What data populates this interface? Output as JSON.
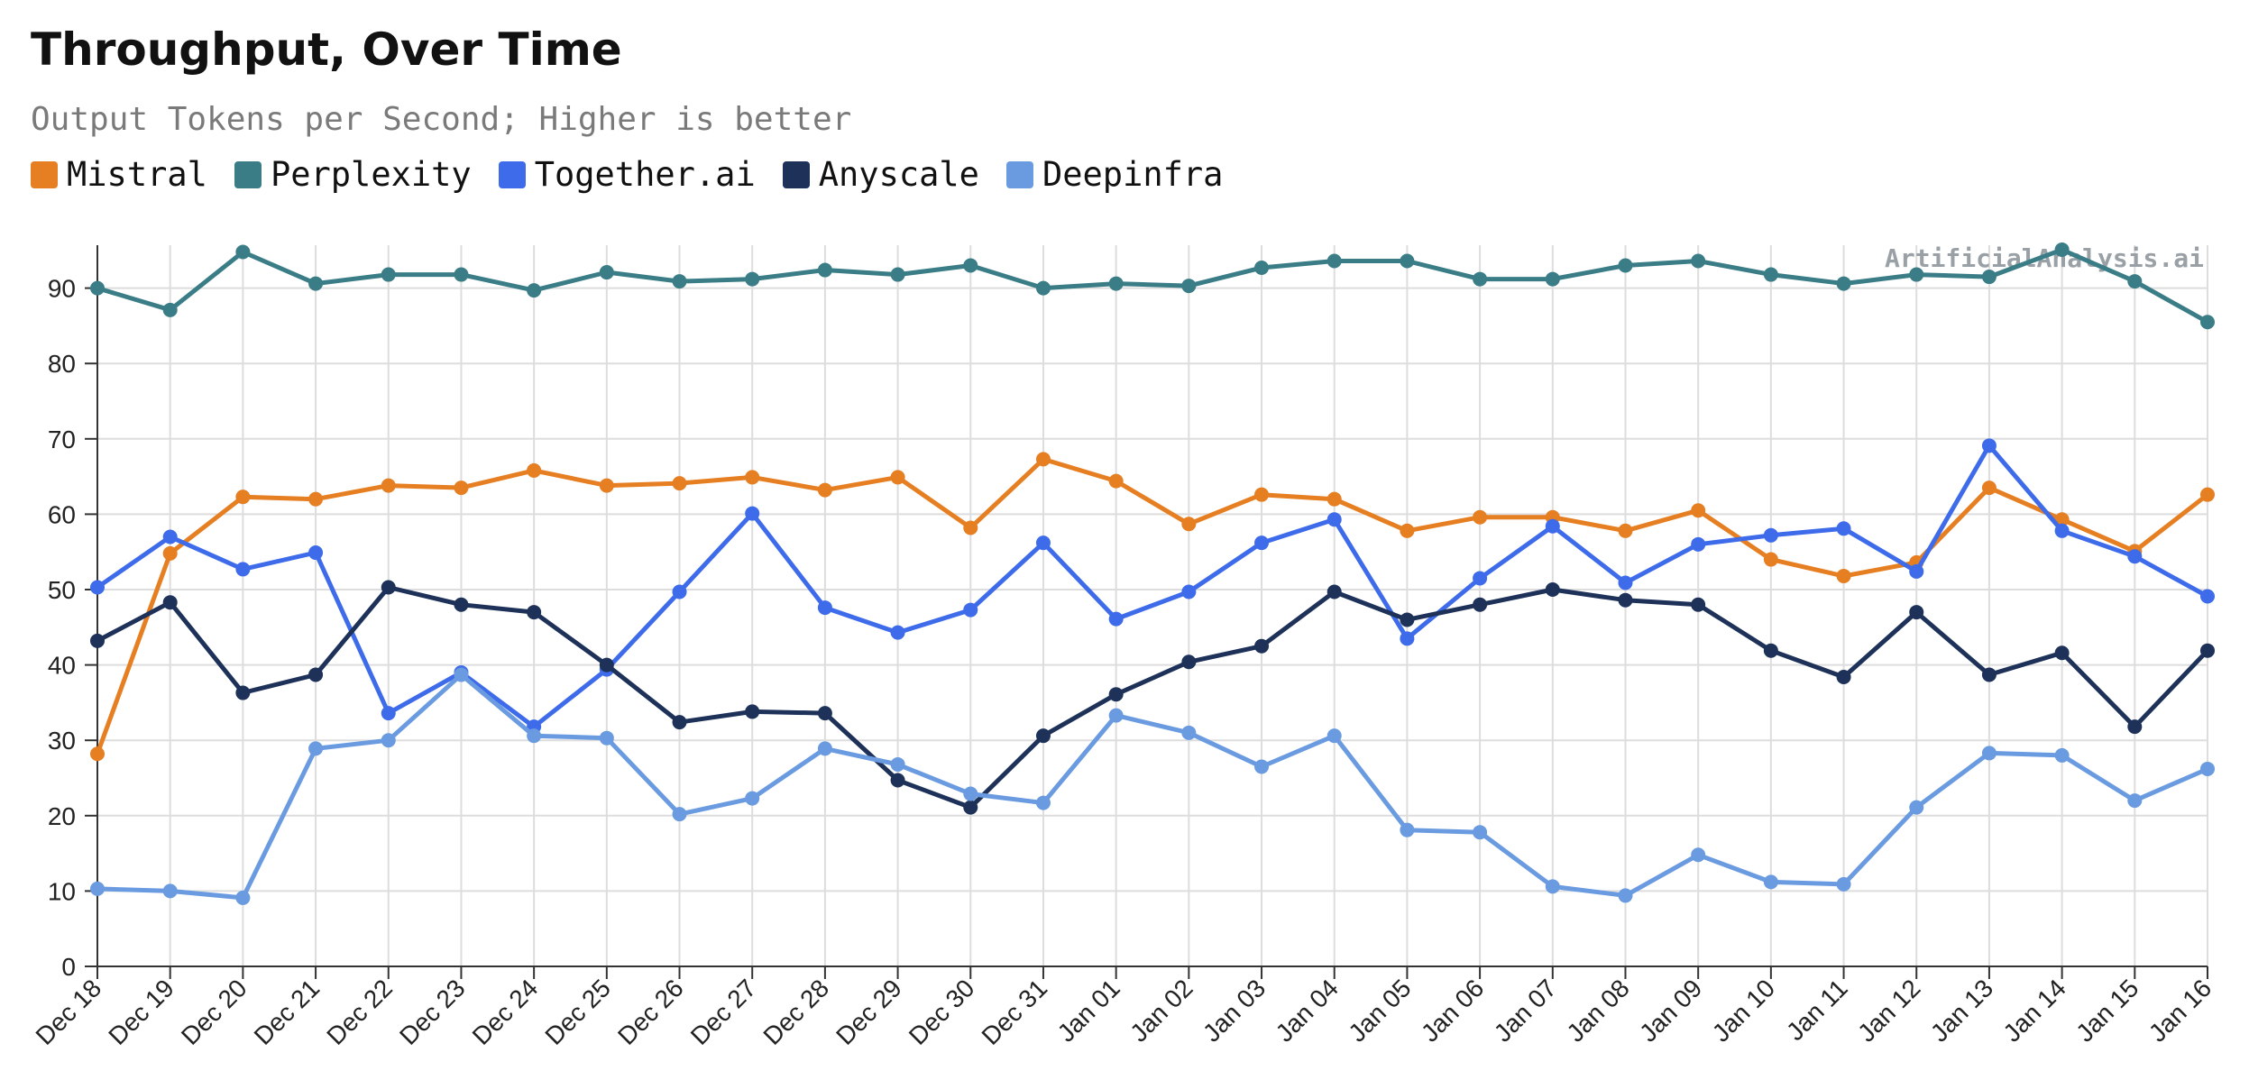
{
  "title": "Throughput, Over Time",
  "subtitle": "Output Tokens per Second; Higher is better",
  "watermark": "ArtificialAnalysis.ai",
  "chart_data": {
    "type": "line",
    "title": "Throughput, Over Time",
    "subtitle": "Output Tokens per Second; Higher is better",
    "xlabel": "",
    "ylabel": "",
    "ylim": [
      0,
      95
    ],
    "yticks": [
      0,
      10,
      20,
      30,
      40,
      50,
      60,
      70,
      80,
      90
    ],
    "grid": true,
    "legend": "top-left",
    "categories": [
      "Dec 18",
      "Dec 19",
      "Dec 20",
      "Dec 21",
      "Dec 22",
      "Dec 23",
      "Dec 24",
      "Dec 25",
      "Dec 26",
      "Dec 27",
      "Dec 28",
      "Dec 29",
      "Dec 30",
      "Dec 31",
      "Jan 01",
      "Jan 02",
      "Jan 03",
      "Jan 04",
      "Jan 05",
      "Jan 06",
      "Jan 07",
      "Jan 08",
      "Jan 09",
      "Jan 10",
      "Jan 11",
      "Jan 12",
      "Jan 13",
      "Jan 14",
      "Jan 15",
      "Jan 16"
    ],
    "series": [
      {
        "name": "Mistral",
        "color": "#e67e22",
        "values": [
          28.2,
          54.8,
          62.3,
          62.0,
          63.8,
          63.5,
          65.8,
          63.8,
          64.1,
          64.9,
          63.2,
          64.9,
          58.2,
          67.3,
          64.4,
          58.7,
          62.6,
          62.0,
          57.8,
          59.6,
          59.6,
          57.8,
          60.5,
          54.0,
          51.8,
          53.6,
          63.5,
          59.3,
          55.1,
          62.6
        ]
      },
      {
        "name": "Perplexity",
        "color": "#3a7d87",
        "values": [
          90.0,
          87.1,
          94.8,
          90.6,
          91.8,
          91.8,
          89.7,
          92.1,
          90.9,
          91.2,
          92.4,
          91.8,
          93.0,
          90.0,
          90.6,
          90.3,
          92.7,
          93.6,
          93.6,
          91.2,
          91.2,
          93.0,
          93.6,
          91.8,
          90.6,
          91.8,
          91.5,
          95.1,
          90.9,
          85.5
        ]
      },
      {
        "name": "Together.ai",
        "color": "#3d6bea",
        "values": [
          50.3,
          57.0,
          52.7,
          54.9,
          33.6,
          39.0,
          31.8,
          39.4,
          49.7,
          60.1,
          47.6,
          44.3,
          47.3,
          56.2,
          46.1,
          49.7,
          56.2,
          59.3,
          43.5,
          51.5,
          58.4,
          50.9,
          56.0,
          57.2,
          58.1,
          52.4,
          69.1,
          57.8,
          54.4,
          49.1
        ]
      },
      {
        "name": "Anyscale",
        "color": "#1d3159",
        "values": [
          43.2,
          48.3,
          36.3,
          38.7,
          50.3,
          48.0,
          47.0,
          40.0,
          32.4,
          33.8,
          33.6,
          24.7,
          21.1,
          30.6,
          36.1,
          40.4,
          42.5,
          49.7,
          46.0,
          48.0,
          50.0,
          48.6,
          48.0,
          41.9,
          38.4,
          47.0,
          38.7,
          41.6,
          31.8,
          41.9
        ]
      },
      {
        "name": "Deepinfra",
        "color": "#6a9be0",
        "values": [
          10.3,
          10.0,
          9.1,
          28.9,
          30.0,
          38.7,
          30.6,
          30.3,
          20.2,
          22.3,
          28.9,
          26.8,
          22.9,
          21.7,
          33.3,
          31.0,
          26.5,
          30.6,
          18.1,
          17.8,
          10.6,
          9.4,
          14.8,
          11.2,
          10.9,
          21.1,
          28.3,
          28.0,
          22.0,
          26.2
        ]
      }
    ]
  }
}
